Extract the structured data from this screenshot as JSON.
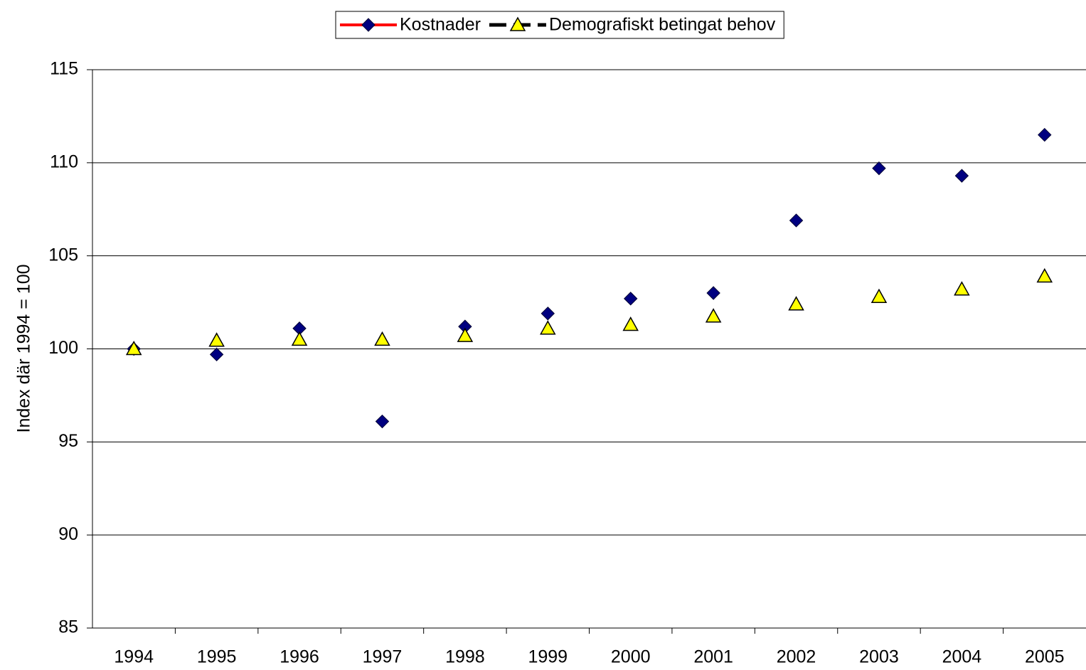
{
  "chart_data": {
    "type": "line",
    "y_label": "Index där 1994 = 100",
    "categories": [
      "1994",
      "1995",
      "1996",
      "1997",
      "1998",
      "1999",
      "2000",
      "2001",
      "2002",
      "2003",
      "2004",
      "2005"
    ],
    "series": [
      {
        "name": "Kostnader",
        "color": "#ff0000",
        "marker": "diamond",
        "marker_color": "#000080",
        "dashed": false,
        "values": [
          100,
          99.7,
          101.1,
          96.1,
          101.2,
          101.9,
          102.7,
          103.0,
          106.9,
          109.7,
          109.3,
          111.5
        ]
      },
      {
        "name": "Demografiskt betingat behov",
        "color": "#000000",
        "marker": "triangle",
        "marker_color": "#ffff00",
        "dashed": true,
        "values": [
          100,
          100.45,
          100.5,
          100.5,
          100.7,
          101.1,
          101.3,
          101.75,
          102.4,
          102.8,
          103.2,
          103.9
        ]
      }
    ],
    "ylim": [
      85,
      115
    ],
    "yticks": [
      85,
      90,
      95,
      100,
      105,
      110,
      115
    ],
    "grid": true,
    "legend": "top"
  }
}
